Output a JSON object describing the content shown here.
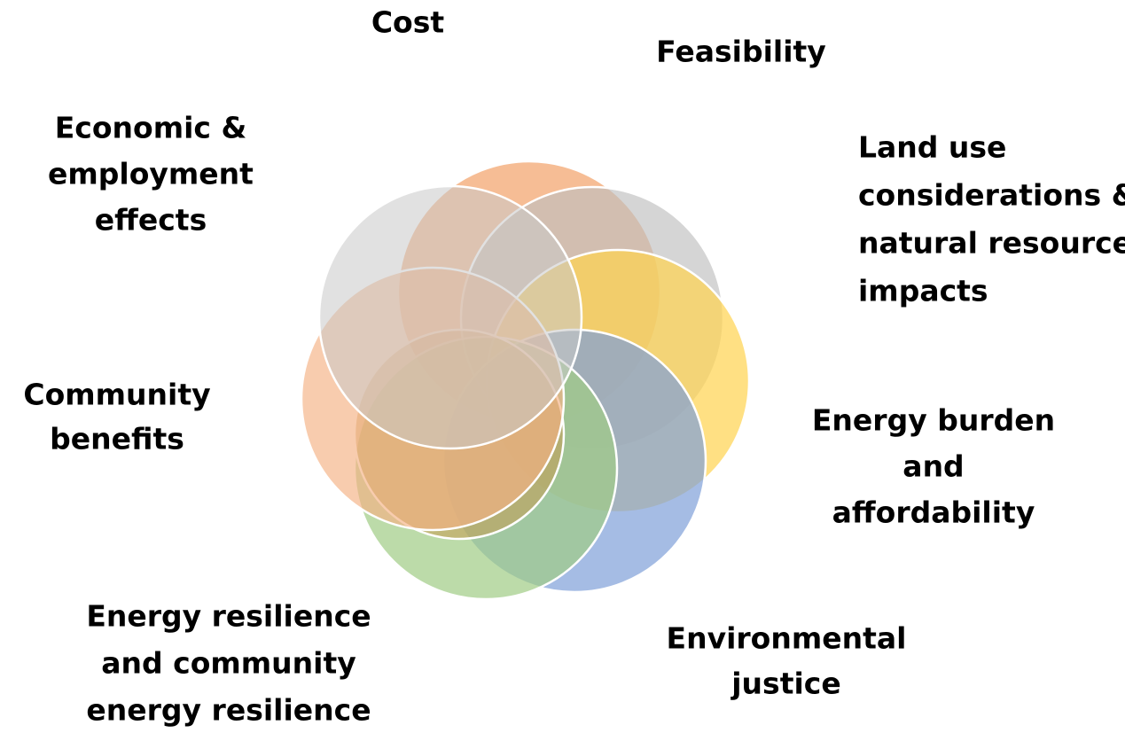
{
  "labels": [
    {
      "lines": [
        "Cost"
      ]
    },
    {
      "lines": [
        "Feasibility"
      ]
    },
    {
      "lines": [
        "Land use",
        "considerations &",
        "natural resource",
        "impacts"
      ]
    },
    {
      "lines": [
        "Energy burden",
        "and",
        "affordability"
      ]
    },
    {
      "lines": [
        "Environmental",
        "justice"
      ]
    },
    {
      "lines": [
        "Energy resilience",
        "and community",
        "energy resilience"
      ]
    },
    {
      "lines": [
        "Community",
        "benefits"
      ]
    },
    {
      "lines": [
        "Economic &",
        "employment",
        "effects"
      ]
    }
  ]
}
